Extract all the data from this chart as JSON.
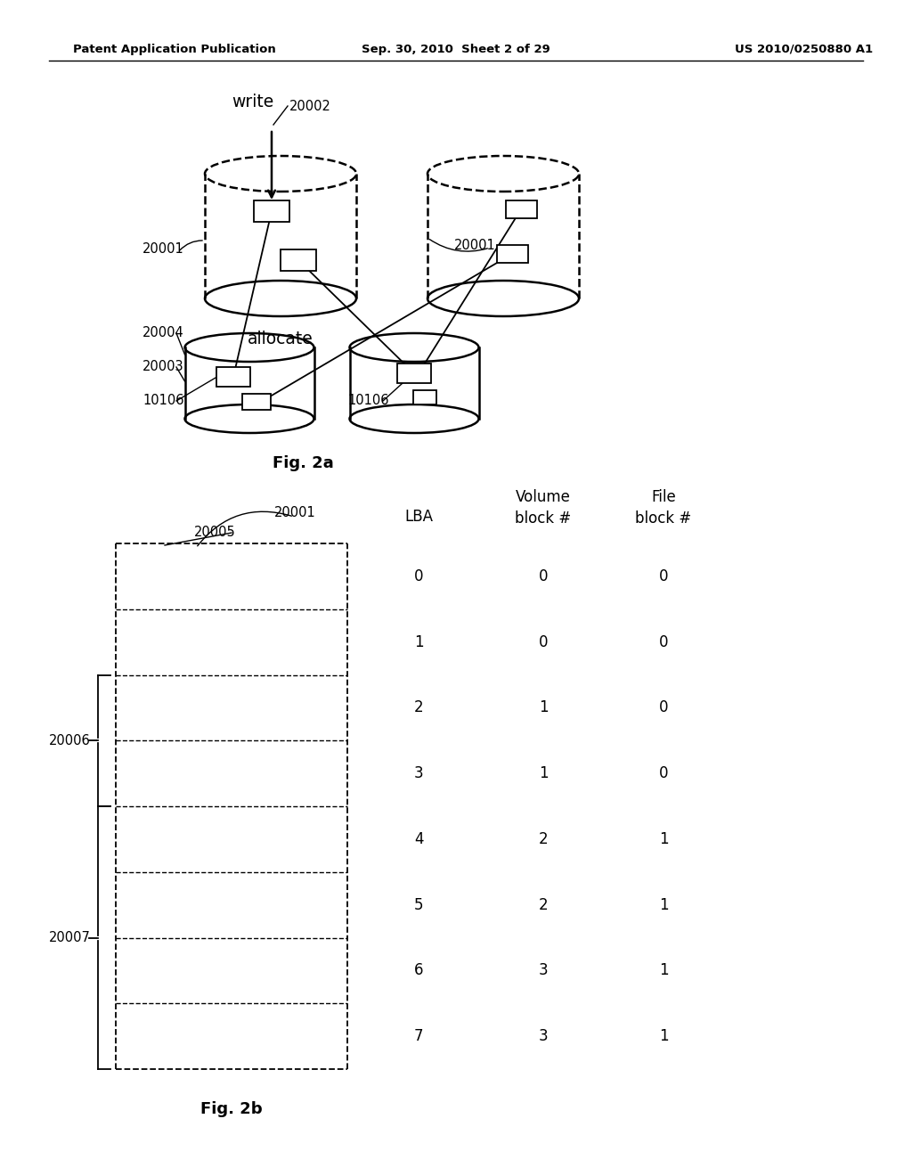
{
  "header_left": "Patent Application Publication",
  "header_mid": "Sep. 30, 2010  Sheet 2 of 29",
  "header_right": "US 2010/0250880 A1",
  "fig2a_label": "Fig. 2a",
  "fig2b_label": "Fig. 2b",
  "write_label": "write",
  "allocate_label": "allocate",
  "table_data": [
    [
      0,
      0,
      0
    ],
    [
      1,
      0,
      0
    ],
    [
      2,
      1,
      0
    ],
    [
      3,
      1,
      0
    ],
    [
      4,
      2,
      1
    ],
    [
      5,
      2,
      1
    ],
    [
      6,
      3,
      1
    ],
    [
      7,
      3,
      1
    ]
  ],
  "bg_color": "#ffffff",
  "line_color": "#000000"
}
